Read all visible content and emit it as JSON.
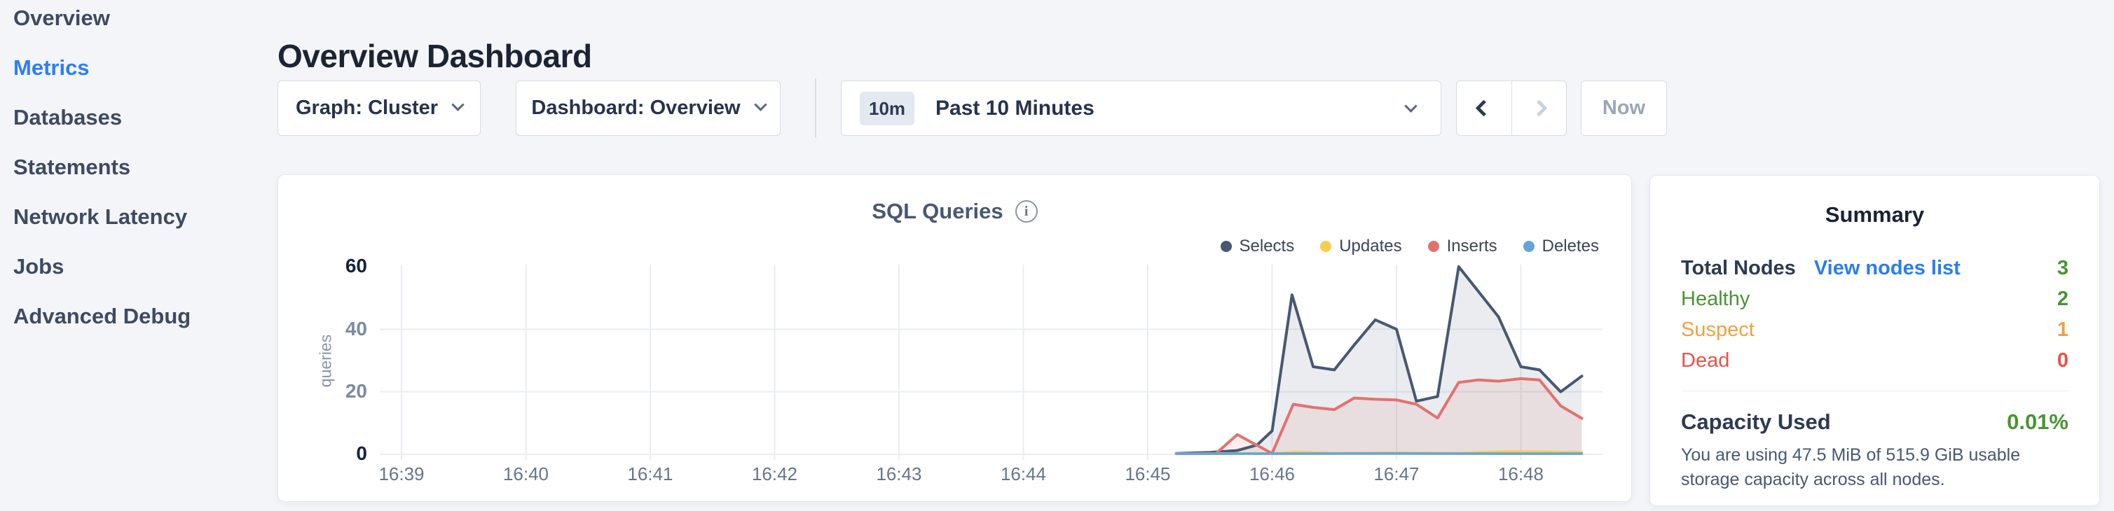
{
  "sidebar": {
    "items": [
      {
        "label": "Overview",
        "active": false
      },
      {
        "label": "Metrics",
        "active": true
      },
      {
        "label": "Databases",
        "active": false
      },
      {
        "label": "Statements",
        "active": false
      },
      {
        "label": "Network Latency",
        "active": false
      },
      {
        "label": "Jobs",
        "active": false
      },
      {
        "label": "Advanced Debug",
        "active": false
      }
    ]
  },
  "header": {
    "title": "Overview Dashboard"
  },
  "toolbar": {
    "graph_dropdown": {
      "label": "Graph: Cluster"
    },
    "dashboard_dropdown": {
      "label": "Dashboard: Overview"
    },
    "time_selector": {
      "badge": "10m",
      "label": "Past 10 Minutes"
    },
    "now_label": "Now"
  },
  "colors": {
    "accent_blue": "#2f7cf6",
    "link_blue": "#2a7ded",
    "healthy_green": "#499432",
    "suspect_orange": "#f0a13e",
    "dead_red": "#e5534b",
    "selects_navy": "#475872",
    "updates_yellow": "#f7cd4d",
    "inserts_red": "#e2726e",
    "deletes_blue": "#61a5db"
  },
  "chart_data": {
    "type": "area",
    "title": "SQL Queries",
    "ylabel": "queries",
    "ylim": [
      0,
      60
    ],
    "y_ticks": [
      0,
      20,
      40,
      60
    ],
    "x_ticks": [
      "16:39",
      "16:40",
      "16:41",
      "16:42",
      "16:43",
      "16:44",
      "16:45",
      "16:46",
      "16:47",
      "16:48"
    ],
    "x_unit": "minutes_after_16:39",
    "grid": true,
    "legend_position": "top-right",
    "series": [
      {
        "name": "Selects",
        "color": "#475872",
        "fill": "rgba(93,108,135,0.13)",
        "width": 4,
        "points": [
          [
            6.23,
            0.3
          ],
          [
            6.5,
            0.6
          ],
          [
            6.72,
            1.2
          ],
          [
            6.88,
            3.0
          ],
          [
            7.0,
            7.5
          ],
          [
            7.16,
            51
          ],
          [
            7.33,
            28
          ],
          [
            7.5,
            27
          ],
          [
            7.66,
            35
          ],
          [
            7.83,
            43
          ],
          [
            8.0,
            40
          ],
          [
            8.16,
            17
          ],
          [
            8.33,
            18.5
          ],
          [
            8.5,
            60
          ],
          [
            8.66,
            52
          ],
          [
            8.82,
            44
          ],
          [
            9.0,
            28
          ],
          [
            9.15,
            27
          ],
          [
            9.32,
            20
          ],
          [
            9.49,
            25
          ]
        ]
      },
      {
        "name": "Updates",
        "color": "#f7cd4d",
        "fill": "none",
        "width": 3.5,
        "points": [
          [
            6.23,
            0.3
          ],
          [
            7.0,
            0.3
          ],
          [
            7.2,
            0.7
          ],
          [
            7.5,
            0.4
          ],
          [
            8.0,
            0.5
          ],
          [
            8.5,
            0.4
          ],
          [
            8.9,
            0.9
          ],
          [
            9.2,
            0.8
          ],
          [
            9.49,
            0.6
          ]
        ]
      },
      {
        "name": "Inserts",
        "color": "#e2726e",
        "fill": "rgba(226,114,110,0.12)",
        "width": 4,
        "points": [
          [
            6.23,
            0.2
          ],
          [
            6.55,
            0.3
          ],
          [
            6.72,
            6.3
          ],
          [
            7.0,
            0.3
          ],
          [
            7.17,
            16
          ],
          [
            7.33,
            15
          ],
          [
            7.5,
            14.3
          ],
          [
            7.66,
            18
          ],
          [
            7.83,
            17.6
          ],
          [
            8.0,
            17.4
          ],
          [
            8.16,
            16
          ],
          [
            8.33,
            11.6
          ],
          [
            8.5,
            23
          ],
          [
            8.66,
            23.8
          ],
          [
            8.82,
            23.4
          ],
          [
            9.0,
            24.2
          ],
          [
            9.15,
            23.8
          ],
          [
            9.32,
            15.5
          ],
          [
            9.49,
            11.5
          ]
        ]
      },
      {
        "name": "Deletes",
        "color": "#61a5db",
        "fill": "none",
        "width": 3.5,
        "points": [
          [
            6.23,
            0.15
          ],
          [
            7.0,
            0.2
          ],
          [
            8.0,
            0.25
          ],
          [
            9.0,
            0.2
          ],
          [
            9.49,
            0.2
          ]
        ]
      }
    ]
  },
  "summary": {
    "title": "Summary",
    "total_nodes_label": "Total Nodes",
    "view_nodes_link": "View nodes list",
    "total_nodes_value": "3",
    "healthy_label": "Healthy",
    "healthy_value": "2",
    "suspect_label": "Suspect",
    "suspect_value": "1",
    "dead_label": "Dead",
    "dead_value": "0",
    "capacity_label": "Capacity Used",
    "capacity_value": "0.01%",
    "capacity_note": "You are using 47.5 MiB of 515.9 GiB usable storage capacity across all nodes."
  }
}
